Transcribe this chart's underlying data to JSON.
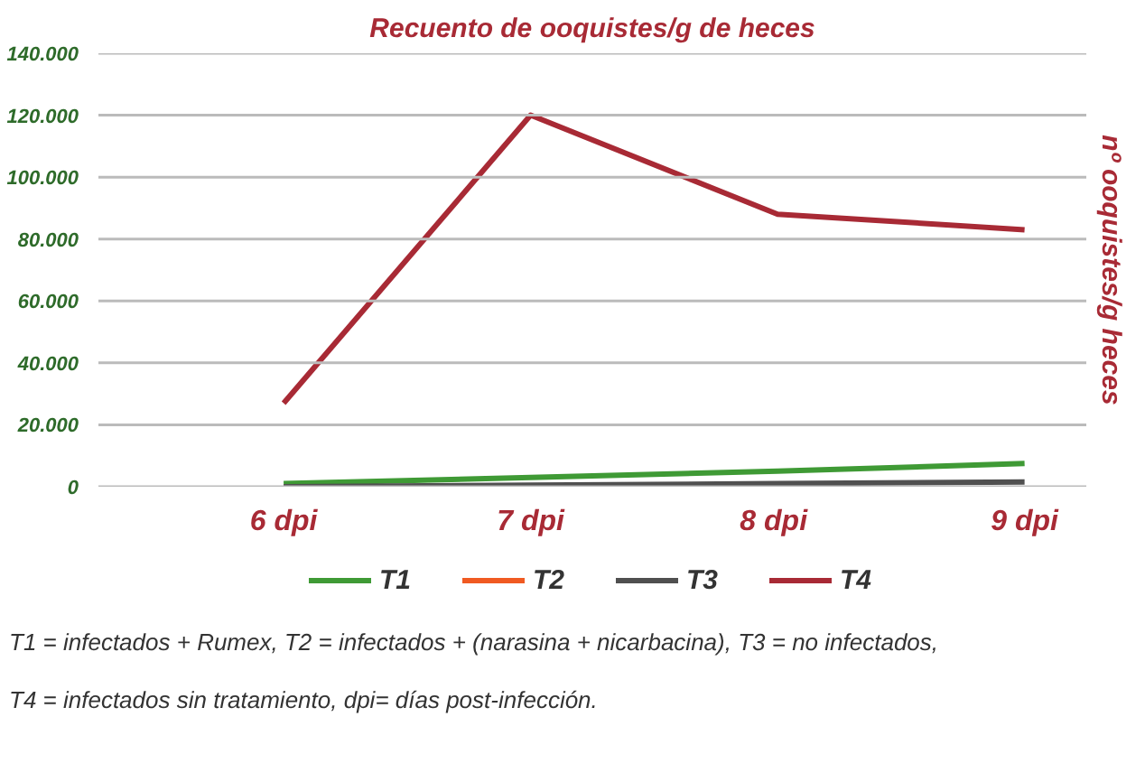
{
  "chart_data": {
    "type": "line",
    "title": "Recuento de ooquistes/g de heces",
    "ylabel": "nº ooquistes/g heces",
    "categories": [
      "6 dpi",
      "7 dpi",
      "8  dpi",
      "9 dpi"
    ],
    "series": [
      {
        "name": "T1",
        "color": "#3f9a35",
        "values": [
          1000,
          3000,
          5000,
          7500
        ]
      },
      {
        "name": "T2",
        "color": "#f05a22",
        "values": [
          null,
          null,
          null,
          null
        ]
      },
      {
        "name": "T3",
        "color": "#505050",
        "values": [
          0,
          500,
          1000,
          1500
        ]
      },
      {
        "name": "T4",
        "color": "#a82a35",
        "values": [
          27000,
          120000,
          88000,
          83000
        ]
      }
    ],
    "ylim": [
      0,
      140000
    ],
    "yticks": [
      {
        "value": 0,
        "label": "0"
      },
      {
        "value": 20000,
        "label": "20.000"
      },
      {
        "value": 40000,
        "label": "40.000"
      },
      {
        "value": 60000,
        "label": "60.000"
      },
      {
        "value": 80000,
        "label": "80.000"
      },
      {
        "value": 100000,
        "label": "100.000"
      },
      {
        "value": 120000,
        "label": "120.000"
      },
      {
        "value": 140000,
        "label": "140.000"
      }
    ],
    "grid": "y",
    "legend": "bottom",
    "marker": "none",
    "line_style": "solid",
    "annotations": [
      "T1 = infectados + Rumex, T2 = infectados + (narasina + nicarbacina), T3 = no infectados,",
      "T4 = infectados sin tratamiento, dpi= días post-infección."
    ]
  }
}
